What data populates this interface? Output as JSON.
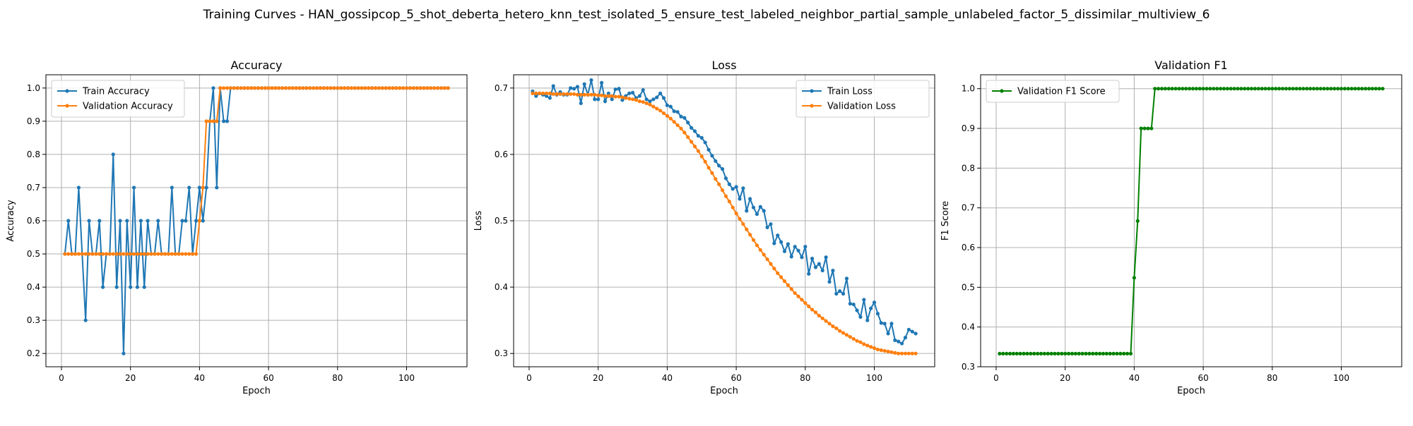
{
  "suptitle": "Training Curves - HAN_gossipcop_5_shot_deberta_hetero_knn_test_isolated_5_ensure_test_labeled_neighbor_partial_sample_unlabeled_factor_5_dissimilar_multiview_6",
  "colors": {
    "train": "#1f77b4",
    "val": "#ff7f0e",
    "f1": "#008000",
    "grid": "#b0b0b0"
  },
  "chart_data": [
    {
      "type": "line",
      "title": "Accuracy",
      "xlabel": "Epoch",
      "ylabel": "Accuracy",
      "xlim": [
        -4.5,
        117.5
      ],
      "ylim": [
        0.16,
        1.04
      ],
      "xticks": [
        0,
        20,
        40,
        60,
        80,
        100
      ],
      "yticks": [
        0.2,
        0.3,
        0.4,
        0.5,
        0.6,
        0.7,
        0.8,
        0.9,
        1.0
      ],
      "ytick_labels": [
        "0.2",
        "0.3",
        "0.4",
        "0.5",
        "0.6",
        "0.7",
        "0.8",
        "0.9",
        "1.0"
      ],
      "grid": true,
      "legend": "upper left",
      "series": [
        {
          "name": "Train Accuracy",
          "color": "#1f77b4",
          "values": [
            0.5,
            0.6,
            0.5,
            0.5,
            0.7,
            0.5,
            0.3,
            0.6,
            0.5,
            0.5,
            0.6,
            0.4,
            0.5,
            0.5,
            0.8,
            0.4,
            0.6,
            0.2,
            0.6,
            0.4,
            0.7,
            0.4,
            0.6,
            0.4,
            0.6,
            0.5,
            0.5,
            0.6,
            0.5,
            0.5,
            0.5,
            0.7,
            0.5,
            0.5,
            0.6,
            0.6,
            0.7,
            0.5,
            0.6,
            0.7,
            0.6,
            0.7,
            0.9,
            1.0,
            0.7,
            1.0,
            0.9,
            0.9,
            1.0,
            1.0,
            1.0,
            1.0,
            1.0,
            1.0,
            1.0,
            1.0,
            1.0,
            1.0,
            1.0,
            1.0,
            1.0,
            1.0,
            1.0,
            1.0,
            1.0,
            1.0,
            1.0,
            1.0,
            1.0,
            1.0,
            1.0,
            1.0,
            1.0,
            1.0,
            1.0,
            1.0,
            1.0,
            1.0,
            1.0,
            1.0,
            1.0,
            1.0,
            1.0,
            1.0,
            1.0,
            1.0,
            1.0,
            1.0,
            1.0,
            1.0,
            1.0,
            1.0,
            1.0,
            1.0,
            1.0,
            1.0,
            1.0,
            1.0,
            1.0,
            1.0,
            1.0,
            1.0,
            1.0,
            1.0,
            1.0,
            1.0,
            1.0,
            1.0,
            1.0,
            1.0,
            1.0,
            1.0
          ]
        },
        {
          "name": "Validation Accuracy",
          "color": "#ff7f0e",
          "values": [
            0.5,
            0.5,
            0.5,
            0.5,
            0.5,
            0.5,
            0.5,
            0.5,
            0.5,
            0.5,
            0.5,
            0.5,
            0.5,
            0.5,
            0.5,
            0.5,
            0.5,
            0.5,
            0.5,
            0.5,
            0.5,
            0.5,
            0.5,
            0.5,
            0.5,
            0.5,
            0.5,
            0.5,
            0.5,
            0.5,
            0.5,
            0.5,
            0.5,
            0.5,
            0.5,
            0.5,
            0.5,
            0.5,
            0.5,
            0.6,
            0.7,
            0.9,
            0.9,
            0.9,
            0.9,
            1.0,
            1.0,
            1.0,
            1.0,
            1.0,
            1.0,
            1.0,
            1.0,
            1.0,
            1.0,
            1.0,
            1.0,
            1.0,
            1.0,
            1.0,
            1.0,
            1.0,
            1.0,
            1.0,
            1.0,
            1.0,
            1.0,
            1.0,
            1.0,
            1.0,
            1.0,
            1.0,
            1.0,
            1.0,
            1.0,
            1.0,
            1.0,
            1.0,
            1.0,
            1.0,
            1.0,
            1.0,
            1.0,
            1.0,
            1.0,
            1.0,
            1.0,
            1.0,
            1.0,
            1.0,
            1.0,
            1.0,
            1.0,
            1.0,
            1.0,
            1.0,
            1.0,
            1.0,
            1.0,
            1.0,
            1.0,
            1.0,
            1.0,
            1.0,
            1.0,
            1.0,
            1.0,
            1.0,
            1.0,
            1.0,
            1.0,
            1.0
          ]
        }
      ]
    },
    {
      "type": "line",
      "title": "Loss",
      "xlabel": "Epoch",
      "ylabel": "Loss",
      "xlim": [
        -4.5,
        117.5
      ],
      "ylim": [
        0.28,
        0.72
      ],
      "xticks": [
        0,
        20,
        40,
        60,
        80,
        100
      ],
      "yticks": [
        0.3,
        0.4,
        0.5,
        0.6,
        0.7
      ],
      "ytick_labels": [
        "0.3",
        "0.4",
        "0.5",
        "0.6",
        "0.7"
      ],
      "grid": true,
      "legend": "upper right",
      "series": [
        {
          "name": "Train Loss",
          "color": "#1f77b4",
          "values": [
            0.695,
            0.688,
            0.692,
            0.69,
            0.688,
            0.685,
            0.703,
            0.69,
            0.694,
            0.69,
            0.69,
            0.7,
            0.699,
            0.702,
            0.677,
            0.706,
            0.69,
            0.712,
            0.683,
            0.683,
            0.708,
            0.68,
            0.692,
            0.683,
            0.698,
            0.699,
            0.682,
            0.688,
            0.692,
            0.693,
            0.685,
            0.688,
            0.697,
            0.683,
            0.68,
            0.683,
            0.686,
            0.692,
            0.685,
            0.674,
            0.672,
            0.665,
            0.664,
            0.657,
            0.655,
            0.648,
            0.64,
            0.635,
            0.628,
            0.625,
            0.618,
            0.607,
            0.598,
            0.59,
            0.583,
            0.578,
            0.564,
            0.555,
            0.548,
            0.551,
            0.533,
            0.549,
            0.515,
            0.533,
            0.52,
            0.51,
            0.521,
            0.515,
            0.49,
            0.495,
            0.466,
            0.478,
            0.468,
            0.454,
            0.465,
            0.446,
            0.461,
            0.455,
            0.445,
            0.461,
            0.42,
            0.443,
            0.43,
            0.435,
            0.425,
            0.445,
            0.408,
            0.425,
            0.39,
            0.394,
            0.39,
            0.413,
            0.375,
            0.374,
            0.365,
            0.355,
            0.381,
            0.35,
            0.368,
            0.377,
            0.36,
            0.346,
            0.345,
            0.33,
            0.345,
            0.32,
            0.318,
            0.315,
            0.324,
            0.336,
            0.333,
            0.33
          ]
        },
        {
          "name": "Validation Loss",
          "color": "#ff7f0e",
          "values": [
            0.692,
            0.692,
            0.692,
            0.692,
            0.692,
            0.692,
            0.691,
            0.691,
            0.691,
            0.691,
            0.691,
            0.691,
            0.691,
            0.69,
            0.69,
            0.69,
            0.69,
            0.69,
            0.69,
            0.689,
            0.689,
            0.688,
            0.688,
            0.688,
            0.687,
            0.687,
            0.686,
            0.685,
            0.684,
            0.683,
            0.682,
            0.68,
            0.679,
            0.677,
            0.675,
            0.672,
            0.669,
            0.666,
            0.662,
            0.658,
            0.654,
            0.649,
            0.644,
            0.639,
            0.633,
            0.626,
            0.619,
            0.612,
            0.605,
            0.597,
            0.589,
            0.58,
            0.572,
            0.563,
            0.555,
            0.546,
            0.537,
            0.529,
            0.52,
            0.511,
            0.503,
            0.495,
            0.487,
            0.479,
            0.471,
            0.463,
            0.456,
            0.449,
            0.442,
            0.435,
            0.428,
            0.421,
            0.415,
            0.409,
            0.403,
            0.397,
            0.391,
            0.386,
            0.381,
            0.376,
            0.371,
            0.366,
            0.362,
            0.357,
            0.353,
            0.349,
            0.345,
            0.341,
            0.338,
            0.334,
            0.331,
            0.328,
            0.325,
            0.322,
            0.319,
            0.317,
            0.314,
            0.312,
            0.31,
            0.308,
            0.306,
            0.305,
            0.304,
            0.303,
            0.302,
            0.301,
            0.3,
            0.3,
            0.3,
            0.3,
            0.3,
            0.3
          ]
        }
      ]
    },
    {
      "type": "line",
      "title": "Validation F1",
      "xlabel": "Epoch",
      "ylabel": "F1 Score",
      "xlim": [
        -4.5,
        117.5
      ],
      "ylim": [
        0.3,
        1.035
      ],
      "xticks": [
        0,
        20,
        40,
        60,
        80,
        100
      ],
      "yticks": [
        0.3,
        0.4,
        0.5,
        0.6,
        0.7,
        0.8,
        0.9,
        1.0
      ],
      "ytick_labels": [
        "0.3",
        "0.4",
        "0.5",
        "0.6",
        "0.7",
        "0.8",
        "0.9",
        "1.0"
      ],
      "grid": true,
      "legend": "upper left",
      "series": [
        {
          "name": "Validation F1 Score",
          "color": "#008000",
          "values": [
            0.333,
            0.333,
            0.333,
            0.333,
            0.333,
            0.333,
            0.333,
            0.333,
            0.333,
            0.333,
            0.333,
            0.333,
            0.333,
            0.333,
            0.333,
            0.333,
            0.333,
            0.333,
            0.333,
            0.333,
            0.333,
            0.333,
            0.333,
            0.333,
            0.333,
            0.333,
            0.333,
            0.333,
            0.333,
            0.333,
            0.333,
            0.333,
            0.333,
            0.333,
            0.333,
            0.333,
            0.333,
            0.333,
            0.333,
            0.524,
            0.667,
            0.9,
            0.9,
            0.9,
            0.9,
            1.0,
            1.0,
            1.0,
            1.0,
            1.0,
            1.0,
            1.0,
            1.0,
            1.0,
            1.0,
            1.0,
            1.0,
            1.0,
            1.0,
            1.0,
            1.0,
            1.0,
            1.0,
            1.0,
            1.0,
            1.0,
            1.0,
            1.0,
            1.0,
            1.0,
            1.0,
            1.0,
            1.0,
            1.0,
            1.0,
            1.0,
            1.0,
            1.0,
            1.0,
            1.0,
            1.0,
            1.0,
            1.0,
            1.0,
            1.0,
            1.0,
            1.0,
            1.0,
            1.0,
            1.0,
            1.0,
            1.0,
            1.0,
            1.0,
            1.0,
            1.0,
            1.0,
            1.0,
            1.0,
            1.0,
            1.0,
            1.0,
            1.0,
            1.0,
            1.0,
            1.0,
            1.0,
            1.0,
            1.0,
            1.0,
            1.0,
            1.0
          ]
        }
      ]
    }
  ]
}
